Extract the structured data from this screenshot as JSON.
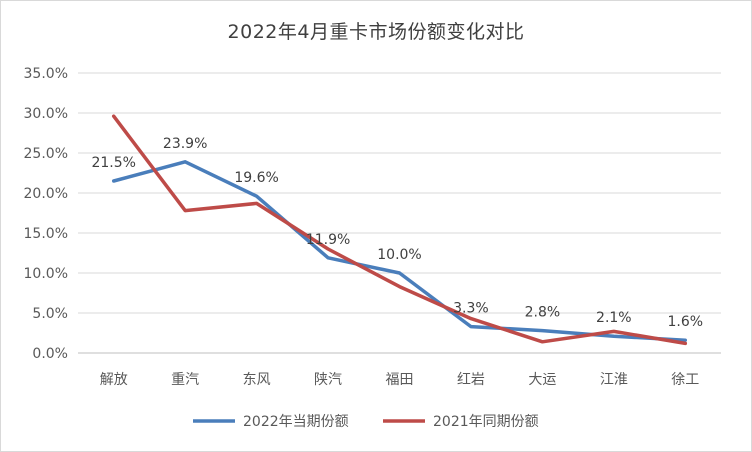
{
  "chart_data": {
    "type": "line",
    "title": "2022年4月重卡市场份额变化对比",
    "categories": [
      "解放",
      "重汽",
      "东风",
      "陕汽",
      "福田",
      "红岩",
      "大运",
      "江淮",
      "徐工"
    ],
    "series": [
      {
        "name": "2022年当期份额",
        "color": "#4a7ebb",
        "values": [
          21.5,
          23.9,
          19.6,
          11.9,
          10.0,
          3.3,
          2.8,
          2.1,
          1.6
        ],
        "data_labels": [
          "21.5%",
          "23.9%",
          "19.6%",
          "11.9%",
          "10.0%",
          "3.3%",
          "2.8%",
          "2.1%",
          "1.6%"
        ]
      },
      {
        "name": "2021年同期份额",
        "color": "#be4b48",
        "values": [
          29.6,
          17.8,
          18.7,
          13.0,
          8.3,
          4.3,
          1.4,
          2.7,
          1.2
        ]
      }
    ],
    "ylim": [
      0,
      35
    ],
    "yticks": [
      0,
      5,
      10,
      15,
      20,
      25,
      30,
      35
    ],
    "ytick_labels": [
      "0.0%",
      "5.0%",
      "10.0%",
      "15.0%",
      "20.0%",
      "25.0%",
      "30.0%",
      "35.0%"
    ],
    "grid": true,
    "legend_position": "bottom"
  }
}
